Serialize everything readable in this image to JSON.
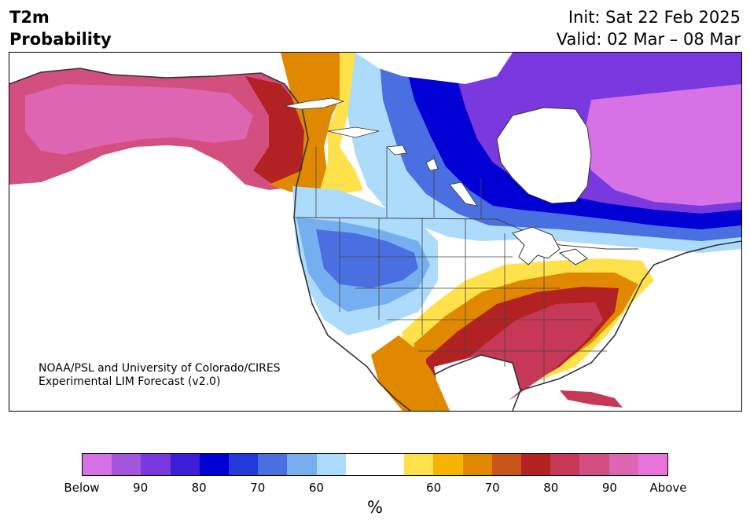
{
  "title": {
    "line1": "T2m",
    "line2": "Probability"
  },
  "header": {
    "init": "Init: Sat 22 Feb 2025",
    "valid": "Valid: 02 Mar – 08 Mar"
  },
  "credit": {
    "line1": "NOAA/PSL and University of Colorado/CIRES",
    "line2": "Experimental LIM Forecast (v2.0)"
  },
  "colorbar": {
    "colors": [
      "#d671e6",
      "#a355de",
      "#7a39de",
      "#3d1ed8",
      "#0000d4",
      "#2439dc",
      "#4a6fe0",
      "#76afef",
      "#addbfc",
      "#ffffff",
      "#ffffff",
      "#ffe24b",
      "#f4b400",
      "#e08800",
      "#c8561a",
      "#b22222",
      "#c73857",
      "#d24f80",
      "#dd65b2",
      "#e774db"
    ],
    "ticks": [
      "Below",
      "90",
      "80",
      "70",
      "60",
      "60",
      "70",
      "80",
      "90",
      "Above"
    ],
    "label": "%"
  },
  "palette": {
    "below_strong": "#0000d4",
    "below_mid": "#4a6fe0",
    "below_weak": "#addbfc",
    "above_weak": "#ffe24b",
    "above_mid": "#e08800",
    "above_strong": "#b22222",
    "above_extreme": "#dd65b2",
    "below_extreme": "#d671e6"
  }
}
